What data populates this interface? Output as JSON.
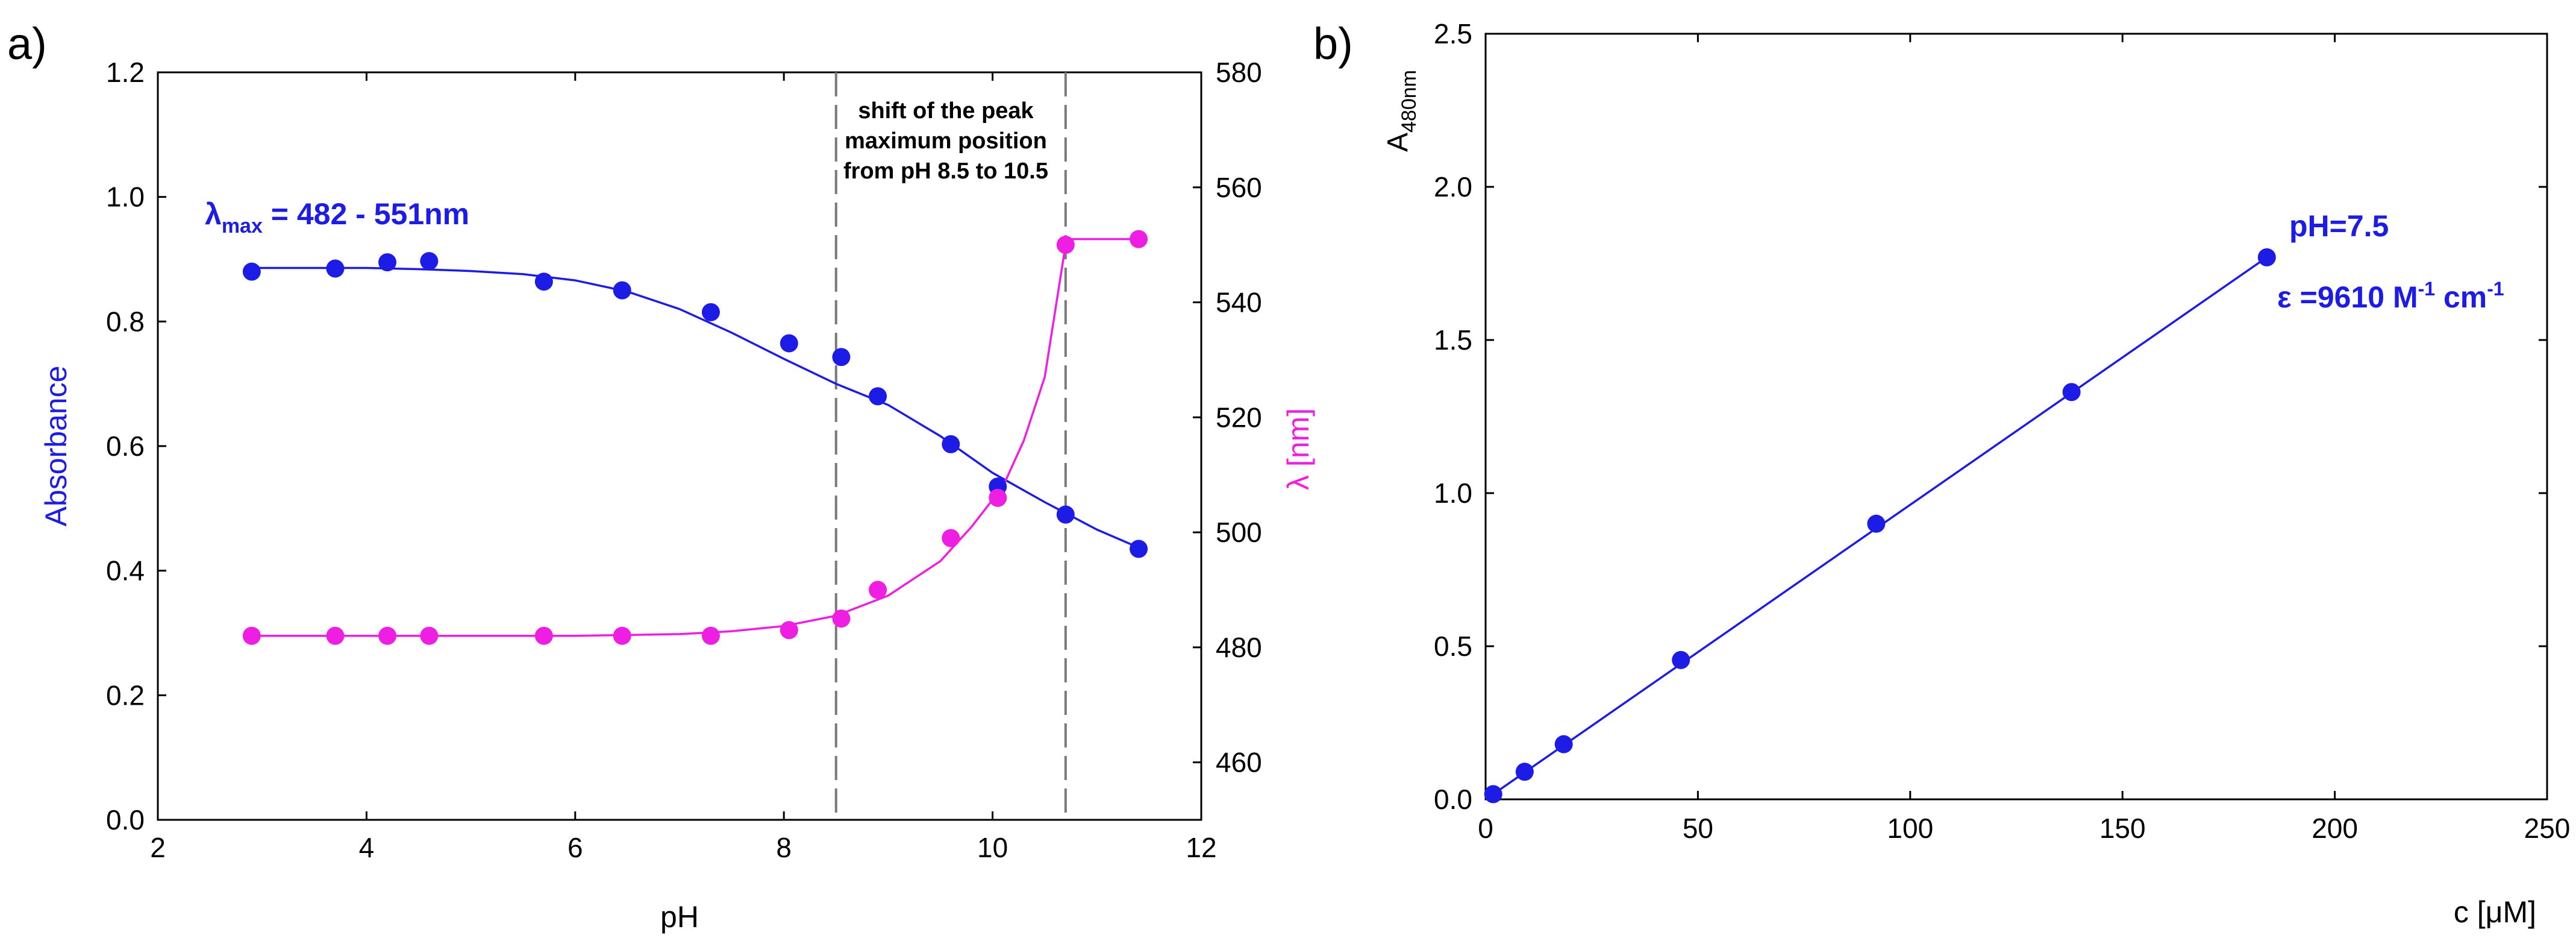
{
  "panels": {
    "a_label": "a)",
    "b_label": "b)"
  },
  "colors": {
    "absorbance": "#1c1ce6",
    "wavelength": "#ee1ee2",
    "axis": "#000000",
    "dash": "#7a7a7a"
  },
  "chart_data": [
    {
      "type": "scatter",
      "panel": "a",
      "xlabel": "pH",
      "ylabel": "Absorbance",
      "y2label": "λ [nm]",
      "xlim": [
        2,
        12
      ],
      "ylim": [
        0,
        1.2
      ],
      "y2lim": [
        450,
        580
      ],
      "xticks": [
        2,
        4,
        6,
        8,
        10,
        12
      ],
      "xtick_labels": [
        "2",
        "4",
        "6",
        "8",
        "10",
        "12"
      ],
      "yticks": [
        0,
        0.2,
        0.4,
        0.6,
        0.8,
        1.0,
        1.2
      ],
      "ytick_labels": [
        "0.0",
        "0.2",
        "0.4",
        "0.6",
        "0.8",
        "1.0",
        "1.2"
      ],
      "y2ticks": [
        460,
        480,
        500,
        520,
        540,
        560,
        580
      ],
      "y2tick_labels": [
        "460",
        "480",
        "500",
        "520",
        "540",
        "560",
        "580"
      ],
      "annotations": {
        "lambda_prefix": "λ",
        "lambda_sub": "max",
        "lambda_range": " = 482 - 551nm",
        "shift_line1": "shift of the peak",
        "shift_line2": "maximum position",
        "shift_line3": "from pH 8.5 to 10.5"
      },
      "dashed_lines_x": [
        8.5,
        10.7
      ],
      "series": [
        {
          "name": "Absorbance",
          "axis": "left",
          "x": [
            2.9,
            3.7,
            4.2,
            4.6,
            5.7,
            6.45,
            7.3,
            8.05,
            8.55,
            8.9,
            9.6,
            10.05,
            10.7,
            11.4
          ],
          "y": [
            0.88,
            0.885,
            0.895,
            0.897,
            0.864,
            0.85,
            0.815,
            0.765,
            0.743,
            0.68,
            0.603,
            0.535,
            0.49,
            0.435
          ]
        },
        {
          "name": "λ",
          "axis": "right",
          "x": [
            2.9,
            3.7,
            4.2,
            4.6,
            5.7,
            6.45,
            7.3,
            8.05,
            8.55,
            8.9,
            9.6,
            10.05,
            10.7,
            11.4
          ],
          "y": [
            482,
            482,
            482,
            482,
            482,
            482,
            482,
            483,
            485,
            490,
            499,
            506,
            550,
            551
          ]
        }
      ],
      "fit_curves": [
        {
          "name": "Absorbance fit",
          "axis": "left",
          "x": [
            2.9,
            3.5,
            4,
            4.5,
            5,
            5.5,
            6,
            6.5,
            7,
            7.5,
            8,
            8.5,
            9,
            9.5,
            10,
            10.5,
            11,
            11.4
          ],
          "y": [
            0.886,
            0.886,
            0.886,
            0.884,
            0.881,
            0.876,
            0.866,
            0.848,
            0.82,
            0.782,
            0.74,
            0.7,
            0.666,
            0.616,
            0.557,
            0.51,
            0.466,
            0.437
          ]
        },
        {
          "name": "λ fit",
          "axis": "right",
          "x": [
            2.9,
            4,
            5,
            6,
            7,
            7.5,
            8,
            8.5,
            9,
            9.5,
            9.8,
            10.1,
            10.3,
            10.5,
            10.7,
            10.72,
            11.4
          ],
          "y": [
            482,
            482,
            482,
            482,
            482.3,
            482.8,
            483.7,
            485.5,
            489,
            495,
            501,
            508,
            516,
            527,
            550,
            551,
            551
          ]
        }
      ]
    },
    {
      "type": "scatter",
      "panel": "b",
      "xlabel": "c [μM]",
      "ylabel_main": "A",
      "ylabel_sub": "480nm",
      "xlim": [
        0,
        250
      ],
      "ylim": [
        0,
        2.5
      ],
      "xticks": [
        0,
        50,
        100,
        150,
        200,
        250
      ],
      "xtick_labels": [
        "0",
        "50",
        "100",
        "150",
        "200",
        "250"
      ],
      "yticks": [
        0,
        0.5,
        1.0,
        1.5,
        2.0,
        2.5
      ],
      "ytick_labels": [
        "0.0",
        "0.5",
        "1.0",
        "1.5",
        "2.0",
        "2.5"
      ],
      "annotations": {
        "ph": "pH=7.5",
        "eps_main": "ε =9610 M",
        "eps_sup1": "-1",
        "eps_mid": " cm",
        "eps_sup2": "-1"
      },
      "series": [
        {
          "name": "A480nm",
          "x": [
            1.8,
            9.2,
            18.4,
            46,
            92,
            138,
            184
          ],
          "y": [
            0.017,
            0.09,
            0.18,
            0.455,
            0.9,
            1.33,
            1.77
          ]
        }
      ],
      "fit_line": {
        "x": [
          1.8,
          184
        ],
        "y": [
          0.017,
          1.77
        ]
      }
    }
  ]
}
